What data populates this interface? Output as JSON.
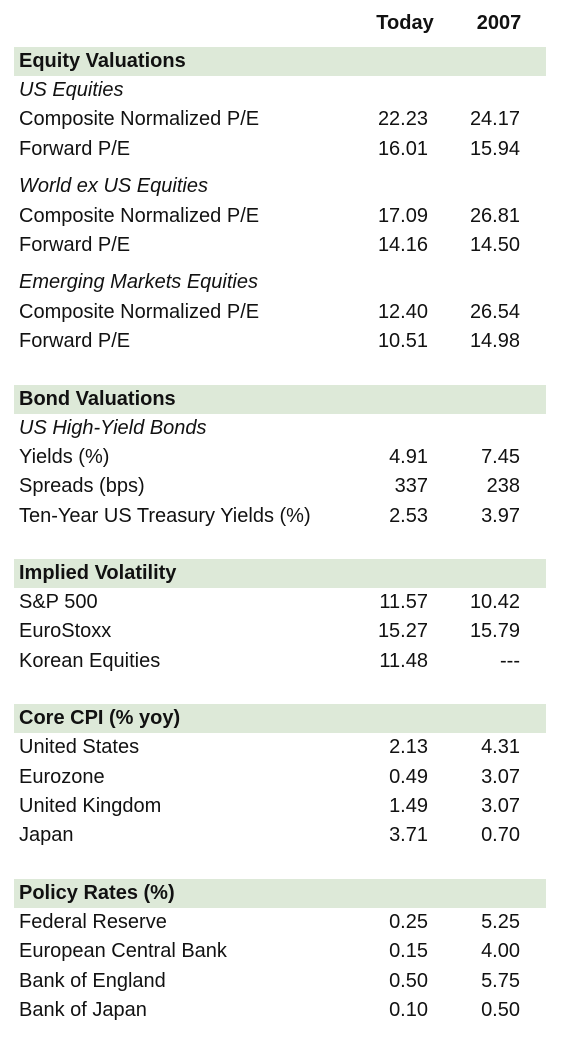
{
  "columns": {
    "today": "Today",
    "y2007": "2007"
  },
  "sections": [
    {
      "title": "Equity Valuations",
      "groups": [
        {
          "subtitle": "US Equities",
          "rows": [
            {
              "label": "Composite Normalized P/E",
              "today": "22.23",
              "y2007": "24.17"
            },
            {
              "label": "Forward P/E",
              "today": "16.01",
              "y2007": "15.94"
            }
          ]
        },
        {
          "subtitle": "World ex US Equities",
          "rows": [
            {
              "label": "Composite Normalized P/E",
              "today": "17.09",
              "y2007": "26.81"
            },
            {
              "label": "Forward P/E",
              "today": "14.16",
              "y2007": "14.50"
            }
          ]
        },
        {
          "subtitle": "Emerging Markets Equities",
          "rows": [
            {
              "label": "Composite Normalized P/E",
              "today": "12.40",
              "y2007": "26.54"
            },
            {
              "label": "Forward P/E",
              "today": "10.51",
              "y2007": "14.98"
            }
          ]
        }
      ]
    },
    {
      "title": "Bond Valuations",
      "groups": [
        {
          "subtitle": "US High-Yield Bonds",
          "rows": [
            {
              "label": "Yields (%)",
              "today": "4.91",
              "y2007": "7.45"
            },
            {
              "label": "Spreads (bps)",
              "today": "337",
              "y2007": "238"
            },
            {
              "label": "Ten-Year US Treasury Yields (%)",
              "today": "2.53",
              "y2007": "3.97"
            }
          ]
        }
      ]
    },
    {
      "title": "Implied Volatility",
      "groups": [
        {
          "subtitle": "",
          "rows": [
            {
              "label": "S&P 500",
              "today": "11.57",
              "y2007": "10.42"
            },
            {
              "label": "EuroStoxx",
              "today": "15.27",
              "y2007": "15.79"
            },
            {
              "label": "Korean Equities",
              "today": "11.48",
              "y2007": "---"
            }
          ]
        }
      ]
    },
    {
      "title": "Core CPI (% yoy)",
      "groups": [
        {
          "subtitle": "",
          "rows": [
            {
              "label": "United States",
              "today": "2.13",
              "y2007": "4.31"
            },
            {
              "label": "Eurozone",
              "today": "0.49",
              "y2007": "3.07"
            },
            {
              "label": "United Kingdom",
              "today": "1.49",
              "y2007": "3.07"
            },
            {
              "label": "Japan",
              "today": "3.71",
              "y2007": "0.70"
            }
          ]
        }
      ]
    },
    {
      "title": "Policy Rates (%)",
      "groups": [
        {
          "subtitle": "",
          "rows": [
            {
              "label": "Federal Reserve",
              "today": "0.25",
              "y2007": "5.25"
            },
            {
              "label": "European Central Bank",
              "today": "0.15",
              "y2007": "4.00"
            },
            {
              "label": "Bank of England",
              "today": "0.50",
              "y2007": "5.75"
            },
            {
              "label": "Bank of Japan",
              "today": "0.10",
              "y2007": "0.50"
            }
          ]
        }
      ]
    }
  ]
}
